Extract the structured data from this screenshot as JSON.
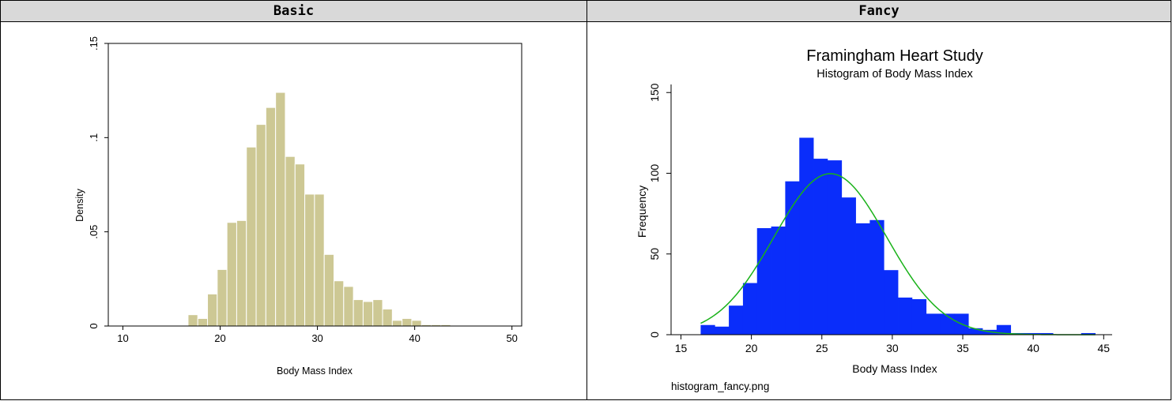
{
  "headers": {
    "left": "Basic",
    "right": "Fancy"
  },
  "colors": {
    "basic_bar_fill": "#cdc894",
    "basic_bar_stroke": "#ffffff",
    "fancy_bar_fill": "#0a2dfa",
    "fancy_curve": "#19b219",
    "frame_line": "#000000"
  },
  "chart_data": [
    {
      "type": "bar",
      "title": "",
      "xlabel": "Body Mass Index",
      "ylabel": "Density",
      "xlim": [
        8.5,
        51
      ],
      "ylim": [
        0,
        0.15
      ],
      "xticks": [
        10,
        20,
        30,
        40,
        50
      ],
      "xtick_labels": [
        "10",
        "20",
        "30",
        "40",
        "50"
      ],
      "yticks": [
        0,
        0.05,
        0.1,
        0.15
      ],
      "ytick_labels": [
        "0",
        ".05",
        ".1",
        ".15"
      ],
      "bin_width": 1,
      "bins_start": [
        16.7,
        17.7,
        18.7,
        19.7,
        20.7,
        21.7,
        22.7,
        23.7,
        24.7,
        25.7,
        26.7,
        27.7,
        28.7,
        29.7,
        30.7,
        31.7,
        32.7,
        33.7,
        34.7,
        35.7,
        36.7,
        37.7,
        38.7,
        39.7,
        40.7,
        41.7,
        42.7
      ],
      "values": [
        0.006,
        0.004,
        0.017,
        0.03,
        0.055,
        0.056,
        0.095,
        0.107,
        0.116,
        0.124,
        0.09,
        0.086,
        0.07,
        0.07,
        0.038,
        0.024,
        0.021,
        0.014,
        0.013,
        0.014,
        0.009,
        0.003,
        0.004,
        0.003,
        0.0007,
        0.0007,
        0.0007
      ]
    },
    {
      "type": "bar",
      "title": "Framingham Heart Study",
      "subtitle": "Histogram of Body Mass Index",
      "xlabel": "Body Mass Index",
      "ylabel": "Frequency",
      "note": "histogram_fancy.png",
      "xlim": [
        14.3,
        45.6
      ],
      "ylim": [
        0,
        155
      ],
      "xticks": [
        15,
        20,
        25,
        30,
        35,
        40,
        45
      ],
      "xtick_labels": [
        "15",
        "20",
        "25",
        "30",
        "35",
        "40",
        "45"
      ],
      "yticks": [
        0,
        50,
        100,
        150
      ],
      "ytick_labels": [
        "0",
        "50",
        "100",
        "150"
      ],
      "bin_width": 1,
      "bins_start": [
        16.4,
        17.4,
        18.4,
        19.4,
        20.4,
        21.4,
        22.4,
        23.4,
        24.4,
        25.4,
        26.4,
        27.4,
        28.4,
        29.4,
        30.4,
        31.4,
        32.4,
        33.4,
        34.4,
        35.4,
        36.4,
        37.4,
        38.4,
        39.4,
        40.4,
        41.4,
        42.4,
        43.4
      ],
      "values": [
        6,
        5,
        18,
        32,
        66,
        67,
        95,
        122,
        109,
        108,
        85,
        69,
        71,
        40,
        23,
        22,
        13,
        13,
        13,
        4,
        3,
        6,
        1,
        1,
        1,
        0,
        0,
        1
      ],
      "fit_curve": {
        "type": "normal",
        "mean": 25.6,
        "sd": 4.0,
        "n": 1000,
        "x_range": [
          16.4,
          44.4
        ]
      }
    }
  ]
}
